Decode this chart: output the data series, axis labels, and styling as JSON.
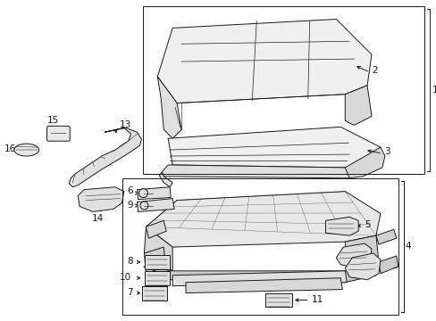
{
  "bg_color": "#ffffff",
  "line_color": "#1a1a1a",
  "fig_width": 4.89,
  "fig_height": 3.6,
  "dpi": 100,
  "font_size": 7.5,
  "line_width": 0.7
}
